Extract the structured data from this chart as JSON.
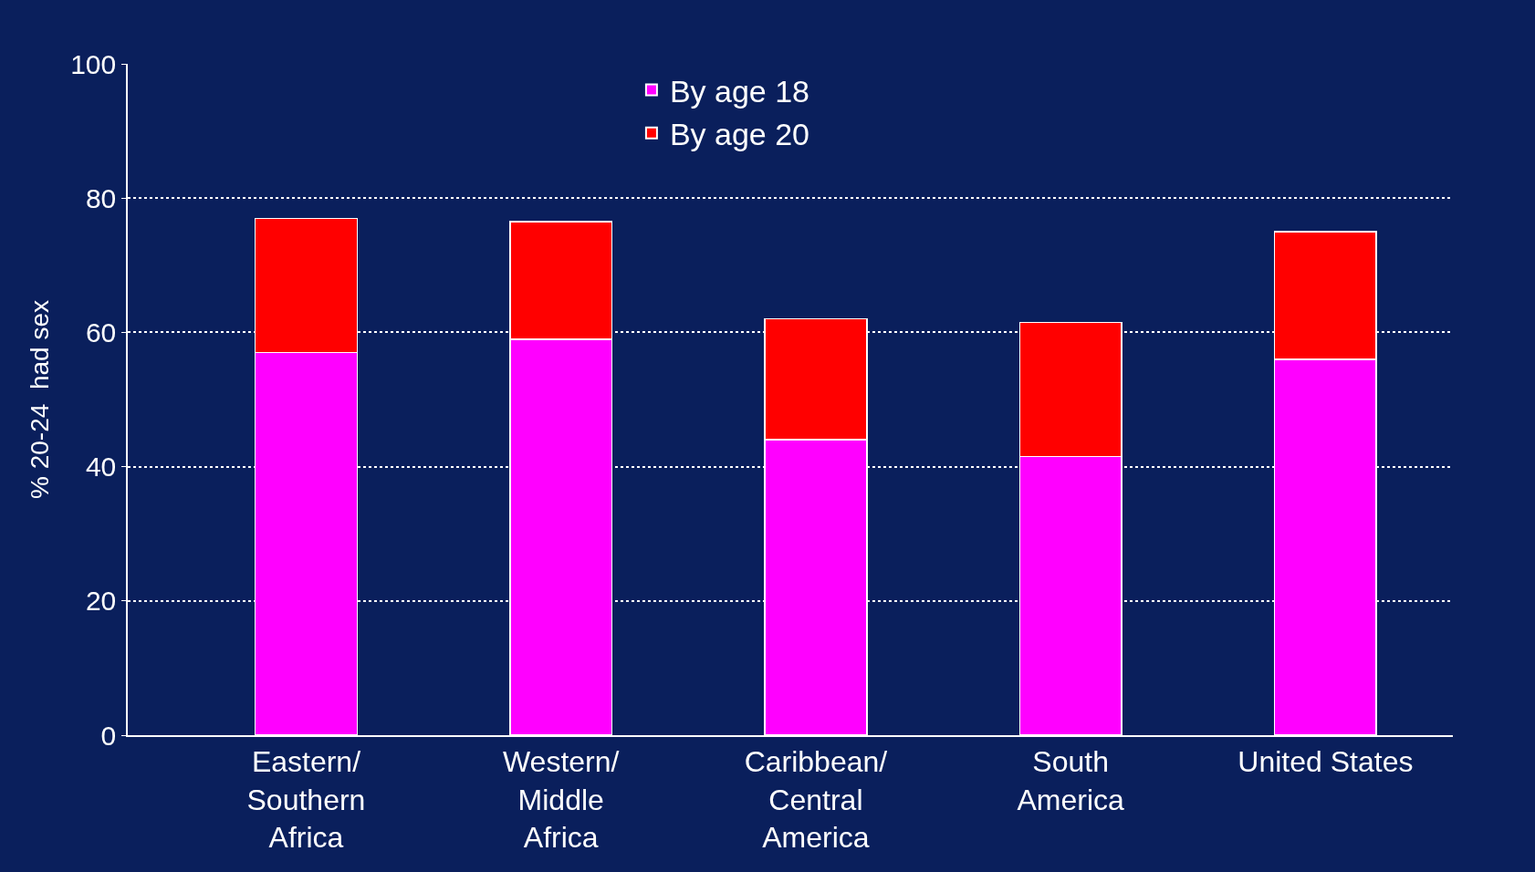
{
  "chart_data": {
    "type": "bar",
    "stacked": true,
    "ylabel": "% 20-24  had sex",
    "categories": [
      "Eastern/\nSouthern\nAfrica",
      "Western/\nMiddle\nAfrica",
      "Caribbean/\nCentral\nAmerica",
      "South\nAmerica",
      "United States"
    ],
    "series": [
      {
        "name": "By age 18",
        "color": "#ff00ff",
        "values": [
          57,
          59,
          44,
          41.5,
          56
        ]
      },
      {
        "name": "By age 20",
        "color": "#ff0000",
        "values": [
          20,
          17.5,
          18,
          20,
          19
        ]
      }
    ],
    "ylim": [
      0,
      100
    ],
    "yticks": [
      0,
      20,
      40,
      60,
      80,
      100
    ],
    "grid": "y",
    "legend": "top"
  }
}
